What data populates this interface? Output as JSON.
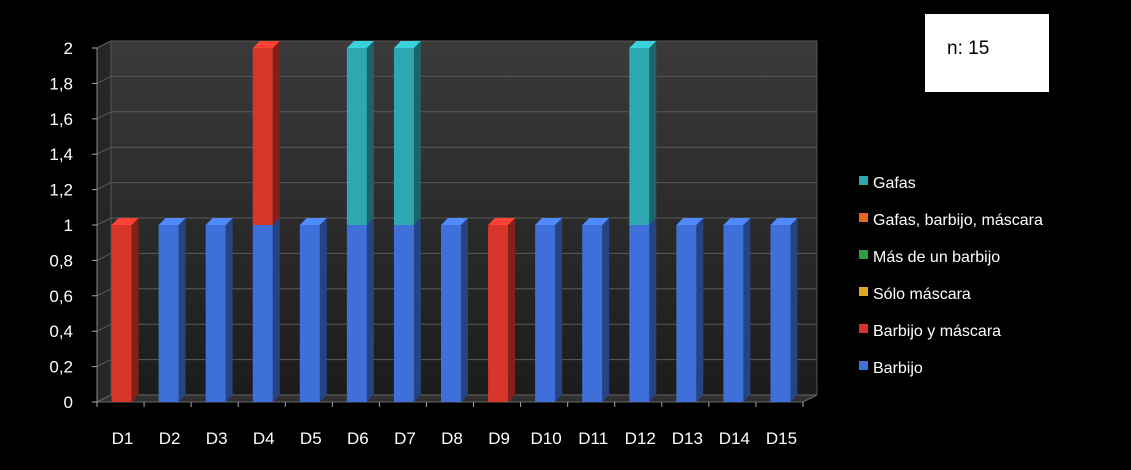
{
  "annotation": {
    "text": "n: 15"
  },
  "chart_data": {
    "type": "bar",
    "stacked": true,
    "three_d": true,
    "title": "",
    "xlabel": "",
    "ylabel": "",
    "ylim": [
      0,
      2
    ],
    "y_ticks": [
      "0",
      "0,2",
      "0,4",
      "0,6",
      "0,8",
      "1",
      "1,2",
      "1,4",
      "1,6",
      "1,8",
      "2"
    ],
    "grid": true,
    "legend_position": "right",
    "categories": [
      "D1",
      "D2",
      "D3",
      "D4",
      "D5",
      "D6",
      "D7",
      "D8",
      "D9",
      "D10",
      "D11",
      "D12",
      "D13",
      "D14",
      "D15"
    ],
    "series": [
      {
        "name": "Barbijo",
        "color": "#3f6fd8",
        "values": [
          0,
          1,
          1,
          1,
          1,
          1,
          1,
          1,
          0,
          1,
          1,
          1,
          1,
          1,
          1
        ]
      },
      {
        "name": "Barbijo y máscara",
        "color": "#d8352a",
        "values": [
          1,
          0,
          0,
          1,
          0,
          0,
          0,
          0,
          1,
          0,
          0,
          0,
          0,
          0,
          0
        ]
      },
      {
        "name": "Sólo máscara",
        "color": "#e0a820",
        "values": [
          0,
          0,
          0,
          0,
          0,
          0,
          0,
          0,
          0,
          0,
          0,
          0,
          0,
          0,
          0
        ]
      },
      {
        "name": "Más de un barbijo",
        "color": "#2e9e3e",
        "values": [
          0,
          0,
          0,
          0,
          0,
          0,
          0,
          0,
          0,
          0,
          0,
          0,
          0,
          0,
          0
        ]
      },
      {
        "name": "Gafas, barbijo, máscara",
        "color": "#e8651c",
        "values": [
          0,
          0,
          0,
          0,
          0,
          0,
          0,
          0,
          0,
          0,
          0,
          0,
          0,
          0,
          0
        ]
      },
      {
        "name": "Gafas",
        "color": "#2fa7b0",
        "values": [
          0,
          0,
          0,
          0,
          0,
          1,
          1,
          0,
          0,
          0,
          0,
          1,
          0,
          0,
          0
        ]
      }
    ]
  }
}
